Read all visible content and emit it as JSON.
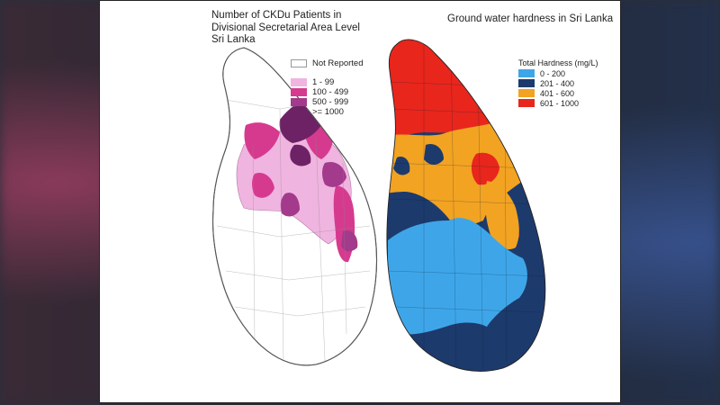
{
  "left_map": {
    "title_lines": [
      "Number of CKDu Patients in",
      "Divisional Secretarial Area Level",
      "Sri Lanka"
    ],
    "legend": [
      {
        "label": "Not Reported",
        "color": "#ffffff"
      },
      {
        "label": "1 - 99",
        "color": "#f0b4e0"
      },
      {
        "label": "100 - 499",
        "color": "#d63a8e"
      },
      {
        "label": "500 - 999",
        "color": "#a33a8c"
      },
      {
        "label": ">= 1000",
        "color": "#6e2266"
      }
    ]
  },
  "right_map": {
    "title": "Ground water hardness in Sri Lanka",
    "legend_title": "Total Hardness (mg/L)",
    "legend": [
      {
        "label": "0 - 200",
        "color": "#3ea6e8"
      },
      {
        "label": "201 - 400",
        "color": "#1d3a6c"
      },
      {
        "label": "401 - 600",
        "color": "#f2a322"
      },
      {
        "label": "601 - 1000",
        "color": "#e8261c"
      }
    ]
  }
}
